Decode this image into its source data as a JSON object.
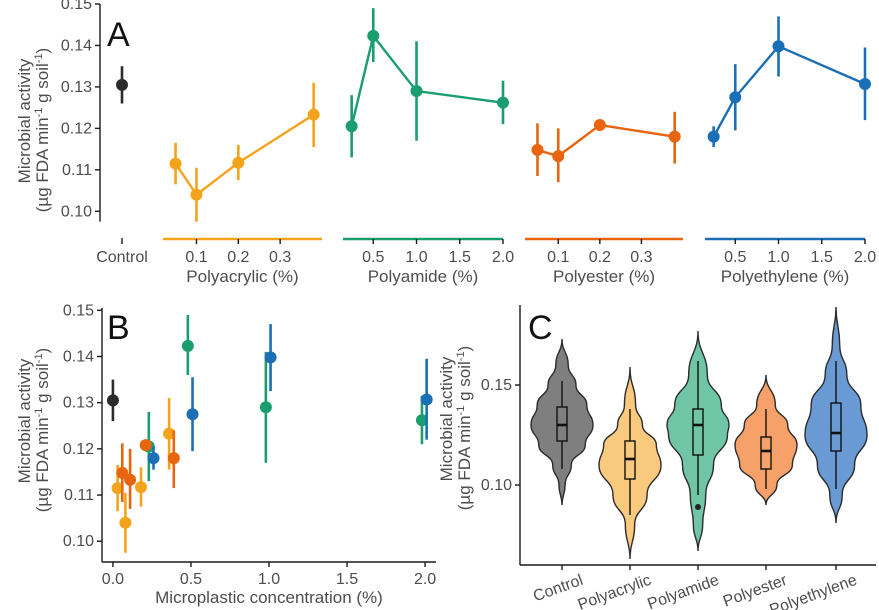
{
  "colors": {
    "Control": "#2b2b2b",
    "Polyacrylic": "#f5a31a",
    "Polyamide": "#1a9e6e",
    "Polyester": "#e8650e",
    "Polyethylene": "#1a6fb5",
    "violin_Control": "#7f7f7f",
    "violin_Polyacrylic": "#f9c97d",
    "violin_Polyamide": "#6fc5a6",
    "violin_Polyester": "#f5a169",
    "violin_Polyethylene": "#6a9ad3"
  },
  "chart_data": [
    {
      "panel": "A",
      "type": "scatter",
      "ylabel_line1": "Microbial activity",
      "ylabel_line2": "(µg FDA min",
      "ylabel_line2b": "g soil",
      "ylabel_sup": "-1",
      "ylim": [
        0.095,
        0.15
      ],
      "yticks": [
        0.1,
        0.11,
        0.12,
        0.13,
        0.14,
        0.15
      ],
      "ytick_labels": [
        "0.10",
        "0.11",
        "0.12",
        "0.13",
        "0.14",
        "0.15"
      ],
      "control": {
        "label": "Control",
        "mean": 0.1305,
        "lo": 0.126,
        "hi": 0.135
      },
      "groups": [
        {
          "name": "Polyacrylic",
          "xlabel": "Polyacrylic (%)",
          "xlim": [
            0.02,
            0.4
          ],
          "xticks": [
            0.1,
            0.2,
            0.3
          ],
          "xtick_labels": [
            "0.1",
            "0.2",
            "0.3"
          ],
          "points": [
            {
              "x": 0.05,
              "y": 0.1115,
              "lo": 0.1065,
              "hi": 0.1165
            },
            {
              "x": 0.1,
              "y": 0.104,
              "lo": 0.0975,
              "hi": 0.1105
            },
            {
              "x": 0.2,
              "y": 0.1117,
              "lo": 0.1075,
              "hi": 0.116
            },
            {
              "x": 0.38,
              "y": 0.1233,
              "lo": 0.1155,
              "hi": 0.131
            }
          ]
        },
        {
          "name": "Polyamide",
          "xlabel": "Polyamide (%)",
          "xlim": [
            0.15,
            2.0
          ],
          "xticks": [
            0.5,
            1.0,
            1.5,
            2.0
          ],
          "xtick_labels": [
            "0.5",
            "1.0",
            "1.5",
            "2.0"
          ],
          "points": [
            {
              "x": 0.25,
              "y": 0.1205,
              "lo": 0.113,
              "hi": 0.128
            },
            {
              "x": 0.5,
              "y": 0.1423,
              "lo": 0.136,
              "hi": 0.149
            },
            {
              "x": 1.0,
              "y": 0.129,
              "lo": 0.117,
              "hi": 0.141
            },
            {
              "x": 2.0,
              "y": 0.1262,
              "lo": 0.121,
              "hi": 0.1315
            }
          ]
        },
        {
          "name": "Polyester",
          "xlabel": "Polyester (%)",
          "xlim": [
            0.02,
            0.4
          ],
          "xticks": [
            0.1,
            0.2,
            0.3
          ],
          "xtick_labels": [
            "0.1",
            "0.2",
            "0.3"
          ],
          "points": [
            {
              "x": 0.05,
              "y": 0.1148,
              "lo": 0.1085,
              "hi": 0.1212
            },
            {
              "x": 0.1,
              "y": 0.1133,
              "lo": 0.107,
              "hi": 0.12
            },
            {
              "x": 0.2,
              "y": 0.1208,
              "lo": 0.1208,
              "hi": 0.1208
            },
            {
              "x": 0.38,
              "y": 0.118,
              "lo": 0.1115,
              "hi": 0.124
            }
          ]
        },
        {
          "name": "Polyethylene",
          "xlabel": "Polyethylene (%)",
          "xlim": [
            0.15,
            2.0
          ],
          "xticks": [
            0.5,
            1.0,
            1.5,
            2.0
          ],
          "xtick_labels": [
            "0.5",
            "1.0",
            "1.5",
            "2.0"
          ],
          "points": [
            {
              "x": 0.25,
              "y": 0.118,
              "lo": 0.1155,
              "hi": 0.1205
            },
            {
              "x": 0.5,
              "y": 0.1275,
              "lo": 0.1195,
              "hi": 0.1355
            },
            {
              "x": 1.0,
              "y": 0.1398,
              "lo": 0.1325,
              "hi": 0.147
            },
            {
              "x": 2.0,
              "y": 0.1307,
              "lo": 0.122,
              "hi": 0.1395
            }
          ]
        }
      ]
    },
    {
      "panel": "B",
      "type": "scatter",
      "xlabel": "Microplastic concentration (%)",
      "ylabel_line1": "Microbial activity",
      "ylabel_line2": "(µg FDA min",
      "ylabel_line2b": "g soil",
      "ylabel_sup": "-1",
      "xlim": [
        -0.07,
        2.07
      ],
      "ylim": [
        0.0955,
        0.1505
      ],
      "xticks": [
        0,
        0.5,
        1.0,
        1.5,
        2.0
      ],
      "xtick_labels": [
        "0.0",
        "0.5",
        "1.0",
        "1.5",
        "2.0"
      ],
      "yticks": [
        0.1,
        0.11,
        0.12,
        0.13,
        0.14,
        0.15
      ],
      "ytick_labels": [
        "0.10",
        "0.11",
        "0.12",
        "0.13",
        "0.14",
        "0.15"
      ],
      "series": [
        {
          "group": "Control",
          "points": [
            {
              "x": 0.0,
              "y": 0.1305,
              "lo": 0.126,
              "hi": 0.135
            }
          ]
        },
        {
          "group": "Polyacrylic",
          "points": [
            {
              "x": 0.03,
              "y": 0.1115,
              "lo": 0.1065,
              "hi": 0.1165
            },
            {
              "x": 0.08,
              "y": 0.104,
              "lo": 0.0975,
              "hi": 0.1105
            },
            {
              "x": 0.18,
              "y": 0.1117,
              "lo": 0.1075,
              "hi": 0.116
            },
            {
              "x": 0.36,
              "y": 0.1233,
              "lo": 0.1155,
              "hi": 0.131
            }
          ]
        },
        {
          "group": "Polyamide",
          "points": [
            {
              "x": 0.23,
              "y": 0.1205,
              "lo": 0.113,
              "hi": 0.128
            },
            {
              "x": 0.48,
              "y": 0.1423,
              "lo": 0.136,
              "hi": 0.149
            },
            {
              "x": 0.98,
              "y": 0.129,
              "lo": 0.117,
              "hi": 0.141
            },
            {
              "x": 1.98,
              "y": 0.1262,
              "lo": 0.121,
              "hi": 0.1315
            }
          ]
        },
        {
          "group": "Polyester",
          "points": [
            {
              "x": 0.06,
              "y": 0.1148,
              "lo": 0.1085,
              "hi": 0.1212
            },
            {
              "x": 0.11,
              "y": 0.1133,
              "lo": 0.107,
              "hi": 0.12
            },
            {
              "x": 0.21,
              "y": 0.1208,
              "lo": 0.1208,
              "hi": 0.1208
            },
            {
              "x": 0.39,
              "y": 0.118,
              "lo": 0.1115,
              "hi": 0.124
            }
          ]
        },
        {
          "group": "Polyethylene",
          "points": [
            {
              "x": 0.26,
              "y": 0.118,
              "lo": 0.1155,
              "hi": 0.1205
            },
            {
              "x": 0.51,
              "y": 0.1275,
              "lo": 0.1195,
              "hi": 0.1355
            },
            {
              "x": 1.01,
              "y": 0.1398,
              "lo": 0.1325,
              "hi": 0.147
            },
            {
              "x": 2.01,
              "y": 0.1307,
              "lo": 0.122,
              "hi": 0.1395
            }
          ]
        }
      ]
    },
    {
      "panel": "C",
      "type": "violin",
      "ylabel_line1": "Microbial activity",
      "ylabel_line2": "(µg FDA min",
      "ylabel_line2b": "g soil",
      "ylabel_sup": "-1",
      "ylim": [
        0.06,
        0.19
      ],
      "yticks": [
        0.1,
        0.15
      ],
      "ytick_labels": [
        "0.10",
        "0.15"
      ],
      "categories": [
        "Control",
        "Polyacrylic",
        "Polyamide",
        "Polyester",
        "Polyethylene"
      ],
      "violins": [
        {
          "name": "Control",
          "min": 0.09,
          "max": 0.173,
          "q1": 0.122,
          "median": 0.13,
          "q3": 0.139,
          "wlo": 0.108,
          "whi": 0.152,
          "profile": [
            [
              0.09,
              0.0
            ],
            [
              0.1,
              0.1
            ],
            [
              0.11,
              0.3
            ],
            [
              0.12,
              0.75
            ],
            [
              0.13,
              1.0
            ],
            [
              0.14,
              0.8
            ],
            [
              0.15,
              0.45
            ],
            [
              0.16,
              0.2
            ],
            [
              0.173,
              0.0
            ]
          ],
          "outliers": []
        },
        {
          "name": "Polyacrylic",
          "min": 0.063,
          "max": 0.159,
          "q1": 0.103,
          "median": 0.113,
          "q3": 0.122,
          "wlo": 0.085,
          "whi": 0.138,
          "profile": [
            [
              0.063,
              0.0
            ],
            [
              0.08,
              0.15
            ],
            [
              0.095,
              0.55
            ],
            [
              0.11,
              1.0
            ],
            [
              0.12,
              0.85
            ],
            [
              0.13,
              0.4
            ],
            [
              0.14,
              0.18
            ],
            [
              0.159,
              0.0
            ]
          ],
          "outliers": []
        },
        {
          "name": "Polyamide",
          "min": 0.067,
          "max": 0.177,
          "q1": 0.115,
          "median": 0.13,
          "q3": 0.138,
          "wlo": 0.095,
          "whi": 0.162,
          "profile": [
            [
              0.067,
              0.0
            ],
            [
              0.08,
              0.15
            ],
            [
              0.095,
              0.25
            ],
            [
              0.11,
              0.5
            ],
            [
              0.125,
              0.95
            ],
            [
              0.13,
              1.0
            ],
            [
              0.14,
              0.75
            ],
            [
              0.155,
              0.3
            ],
            [
              0.177,
              0.0
            ]
          ],
          "outliers": [
            0.089
          ]
        },
        {
          "name": "Polyester",
          "min": 0.09,
          "max": 0.155,
          "q1": 0.108,
          "median": 0.117,
          "q3": 0.124,
          "wlo": 0.098,
          "whi": 0.138,
          "profile": [
            [
              0.09,
              0.0
            ],
            [
              0.1,
              0.35
            ],
            [
              0.11,
              0.85
            ],
            [
              0.12,
              1.0
            ],
            [
              0.13,
              0.7
            ],
            [
              0.14,
              0.3
            ],
            [
              0.155,
              0.0
            ]
          ],
          "outliers": []
        },
        {
          "name": "Polyethylene",
          "min": 0.081,
          "max": 0.189,
          "q1": 0.117,
          "median": 0.126,
          "q3": 0.141,
          "wlo": 0.098,
          "whi": 0.162,
          "profile": [
            [
              0.081,
              0.0
            ],
            [
              0.095,
              0.2
            ],
            [
              0.11,
              0.6
            ],
            [
              0.125,
              1.0
            ],
            [
              0.14,
              0.8
            ],
            [
              0.155,
              0.35
            ],
            [
              0.17,
              0.12
            ],
            [
              0.189,
              0.0
            ]
          ],
          "outliers": []
        }
      ]
    }
  ]
}
